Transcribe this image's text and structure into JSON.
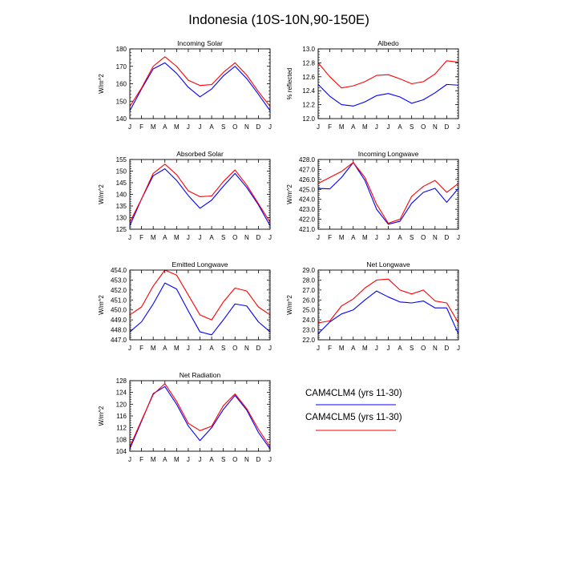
{
  "figure": {
    "title": "Indonesia (10S-10N,90-150E)",
    "month_labels": [
      "J",
      "F",
      "M",
      "A",
      "M",
      "J",
      "J",
      "A",
      "S",
      "O",
      "N",
      "D",
      "J"
    ]
  },
  "colors": {
    "CAM4CLM4": "#0000ff",
    "CAM4CLM5": "#ff0000"
  },
  "legend": [
    {
      "label": "CAM4CLM4 (yrs 11-30)",
      "series": "CAM4CLM4"
    },
    {
      "label": "CAM4CLM5 (yrs 11-30)",
      "series": "CAM4CLM5"
    }
  ],
  "chart_data": [
    {
      "type": "line",
      "title": "Incoming Solar",
      "ylabel": "W/m^2",
      "ylim": [
        140,
        180
      ],
      "yticks": [
        "140",
        "150",
        "160",
        "170",
        "180"
      ],
      "x": [
        "J",
        "F",
        "M",
        "A",
        "M",
        "J",
        "J",
        "A",
        "S",
        "O",
        "N",
        "D",
        "J"
      ],
      "series": [
        {
          "name": "CAM4CLM4",
          "values": [
            144.5,
            157,
            168.5,
            172,
            166,
            158,
            152.5,
            157,
            164.5,
            170,
            163,
            154,
            144.5
          ]
        },
        {
          "name": "CAM4CLM5",
          "values": [
            147,
            157.5,
            170,
            175.5,
            170,
            162,
            159,
            159.5,
            166.5,
            172,
            165,
            155.5,
            147
          ]
        }
      ]
    },
    {
      "type": "line",
      "title": "Albedo",
      "ylabel": "% reflected",
      "ylim": [
        12.0,
        13.0
      ],
      "yticks": [
        "12.0",
        "12.2",
        "12.4",
        "12.6",
        "12.8",
        "13.0"
      ],
      "x": [
        "J",
        "F",
        "M",
        "A",
        "M",
        "J",
        "J",
        "A",
        "S",
        "O",
        "N",
        "D",
        "J"
      ],
      "series": [
        {
          "name": "CAM4CLM4",
          "values": [
            12.49,
            12.32,
            12.2,
            12.18,
            12.24,
            12.33,
            12.36,
            12.31,
            12.22,
            12.27,
            12.37,
            12.49,
            12.48
          ]
        },
        {
          "name": "CAM4CLM5",
          "values": [
            12.8,
            12.6,
            12.44,
            12.47,
            12.53,
            12.62,
            12.63,
            12.57,
            12.5,
            12.53,
            12.64,
            12.83,
            12.81
          ]
        }
      ]
    },
    {
      "type": "line",
      "title": "Absorbed Solar",
      "ylabel": "W/m^2",
      "ylim": [
        125,
        155
      ],
      "yticks": [
        "125",
        "130",
        "135",
        "140",
        "145",
        "150",
        "155"
      ],
      "x": [
        "J",
        "F",
        "M",
        "A",
        "M",
        "J",
        "J",
        "A",
        "S",
        "O",
        "N",
        "D",
        "J"
      ],
      "series": [
        {
          "name": "CAM4CLM4",
          "values": [
            126.5,
            138,
            148,
            151,
            146,
            139.5,
            134,
            137.5,
            143.5,
            149,
            143,
            135.5,
            126.5
          ]
        },
        {
          "name": "CAM4CLM5",
          "values": [
            128,
            138,
            149,
            153,
            148.5,
            141.5,
            139,
            139.3,
            145.5,
            150.5,
            144,
            136,
            128
          ]
        }
      ]
    },
    {
      "type": "line",
      "title": "Incoming Longwave",
      "ylabel": "W/m^2",
      "ylim": [
        421.0,
        428.0
      ],
      "yticks": [
        "421.0",
        "422.0",
        "423.0",
        "424.0",
        "425.0",
        "426.0",
        "427.0",
        "428.0"
      ],
      "x": [
        "J",
        "F",
        "M",
        "A",
        "M",
        "J",
        "J",
        "A",
        "S",
        "O",
        "N",
        "D",
        "J"
      ],
      "series": [
        {
          "name": "CAM4CLM4",
          "values": [
            425.1,
            425.05,
            426.2,
            427.7,
            425.9,
            423.0,
            421.5,
            421.8,
            423.6,
            424.7,
            425.1,
            423.7,
            425.1
          ]
        },
        {
          "name": "CAM4CLM5",
          "values": [
            425.6,
            426.2,
            426.8,
            427.7,
            426.2,
            423.5,
            421.6,
            422.0,
            424.3,
            425.3,
            425.9,
            424.7,
            425.6
          ]
        }
      ]
    },
    {
      "type": "line",
      "title": "Emitted Longwave",
      "ylabel": "W/m^2",
      "ylim": [
        447.0,
        454.0
      ],
      "yticks": [
        "447.0",
        "448.0",
        "449.0",
        "450.0",
        "451.0",
        "452.0",
        "453.0",
        "454.0"
      ],
      "x": [
        "J",
        "F",
        "M",
        "A",
        "M",
        "J",
        "J",
        "A",
        "S",
        "O",
        "N",
        "D",
        "J"
      ],
      "series": [
        {
          "name": "CAM4CLM4",
          "values": [
            447.8,
            448.8,
            450.6,
            452.7,
            452.1,
            449.9,
            447.8,
            447.5,
            449.0,
            450.6,
            450.4,
            448.8,
            447.8
          ]
        },
        {
          "name": "CAM4CLM5",
          "values": [
            449.5,
            450.3,
            452.4,
            454.0,
            453.5,
            451.5,
            449.5,
            449.0,
            450.8,
            452.2,
            451.9,
            450.3,
            449.5
          ]
        }
      ]
    },
    {
      "type": "line",
      "title": "Net Longwave",
      "ylabel": "W/m^2",
      "ylim": [
        22.0,
        29.0
      ],
      "yticks": [
        "22.0",
        "23.0",
        "24.0",
        "25.0",
        "26.0",
        "27.0",
        "28.0",
        "29.0"
      ],
      "x": [
        "J",
        "F",
        "M",
        "A",
        "M",
        "J",
        "J",
        "A",
        "S",
        "O",
        "N",
        "D",
        "J"
      ],
      "series": [
        {
          "name": "CAM4CLM4",
          "values": [
            22.6,
            23.8,
            24.6,
            25.0,
            26.0,
            26.9,
            26.3,
            25.8,
            25.7,
            25.9,
            25.2,
            25.2,
            22.6
          ]
        },
        {
          "name": "CAM4CLM5",
          "values": [
            23.7,
            23.9,
            25.4,
            26.1,
            27.2,
            28.0,
            28.1,
            27.0,
            26.6,
            27.0,
            25.9,
            25.7,
            23.7
          ]
        }
      ]
    },
    {
      "type": "line",
      "title": "Net Radiation",
      "ylabel": "W/m^2",
      "ylim": [
        104,
        128
      ],
      "yticks": [
        "104",
        "108",
        "112",
        "116",
        "120",
        "124",
        "128"
      ],
      "x": [
        "J",
        "F",
        "M",
        "A",
        "M",
        "J",
        "J",
        "A",
        "S",
        "O",
        "N",
        "D",
        "J"
      ],
      "series": [
        {
          "name": "CAM4CLM4",
          "values": [
            104.8,
            114.2,
            123.6,
            126.0,
            120.0,
            112.6,
            107.6,
            112.0,
            118.2,
            123.0,
            118.0,
            110.4,
            104.8
          ]
        },
        {
          "name": "CAM4CLM5",
          "values": [
            105.5,
            114.5,
            123.3,
            127.0,
            121.0,
            113.5,
            111.0,
            112.5,
            119.5,
            123.5,
            118.5,
            111.5,
            105.5
          ]
        }
      ]
    }
  ]
}
